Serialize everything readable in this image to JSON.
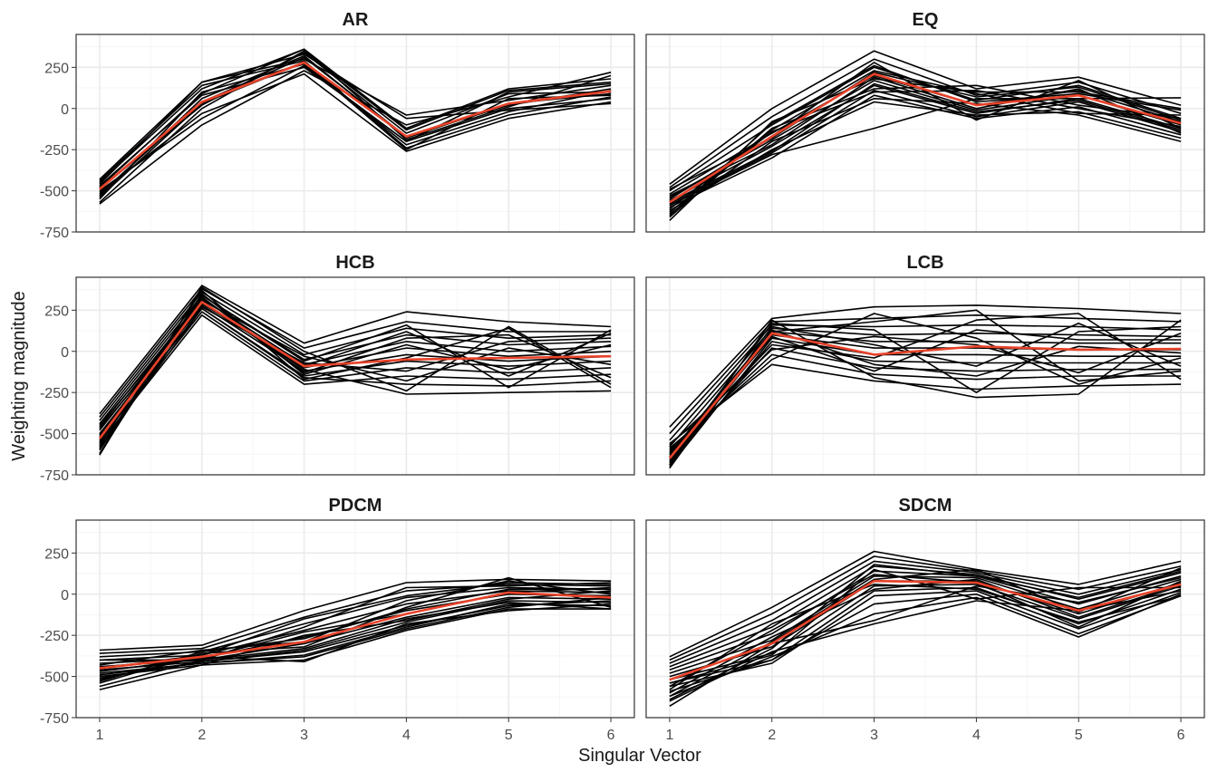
{
  "chart_data": {
    "type": "line",
    "ylabel": "Weighting magnitude",
    "xlabel": "Singular Vector",
    "x": [
      1,
      2,
      3,
      4,
      5,
      6
    ],
    "xlim": [
      0.77,
      6.23
    ],
    "ylim": [
      -750,
      450
    ],
    "yticks": [
      -750,
      -500,
      -250,
      0,
      250
    ],
    "grid": true,
    "colors": {
      "sample": "#000000",
      "mean": "#e8432a",
      "gridMajor": "#ebebeb",
      "gridMinor": "#f5f5f5",
      "border": "#333333"
    },
    "panels": [
      {
        "title": "AR",
        "mean": [
          -490,
          40,
          280,
          -170,
          30,
          105
        ],
        "samples": [
          [
            -430,
            160,
            300,
            -40,
            50,
            140
          ],
          [
            -450,
            120,
            360,
            -120,
            120,
            180
          ],
          [
            -470,
            80,
            250,
            -200,
            0,
            60
          ],
          [
            -490,
            20,
            340,
            -150,
            90,
            100
          ],
          [
            -510,
            -30,
            210,
            -260,
            -60,
            40
          ],
          [
            -530,
            60,
            320,
            -180,
            30,
            90
          ],
          [
            -550,
            100,
            270,
            -220,
            -20,
            110
          ],
          [
            -570,
            0,
            350,
            -130,
            110,
            160
          ],
          [
            -580,
            -100,
            230,
            -100,
            70,
            220
          ],
          [
            -440,
            140,
            290,
            -240,
            -40,
            70
          ],
          [
            -520,
            40,
            310,
            -170,
            20,
            120
          ],
          [
            -500,
            -60,
            260,
            -200,
            100,
            150
          ],
          [
            -460,
            160,
            330,
            -60,
            -10,
            30
          ],
          [
            -540,
            30,
            280,
            -250,
            60,
            80
          ],
          [
            -480,
            90,
            360,
            -190,
            10,
            200
          ]
        ]
      },
      {
        "title": "EQ",
        "mean": [
          -570,
          -170,
          210,
          20,
          80,
          -90
        ],
        "samples": [
          [
            -460,
            0,
            350,
            120,
            190,
            20
          ],
          [
            -480,
            -50,
            300,
            80,
            160,
            -30
          ],
          [
            -500,
            -100,
            250,
            50,
            140,
            -60
          ],
          [
            -520,
            -150,
            200,
            20,
            110,
            -80
          ],
          [
            -540,
            -190,
            170,
            -10,
            80,
            -100
          ],
          [
            -560,
            -230,
            140,
            -30,
            60,
            -120
          ],
          [
            -580,
            -270,
            110,
            -50,
            40,
            -140
          ],
          [
            -600,
            -300,
            80,
            -60,
            10,
            -160
          ],
          [
            -620,
            -250,
            40,
            -40,
            -20,
            -180
          ],
          [
            -640,
            -200,
            60,
            30,
            -40,
            -200
          ],
          [
            -660,
            -120,
            120,
            140,
            20,
            -60
          ],
          [
            -680,
            -80,
            180,
            100,
            100,
            0
          ],
          [
            -590,
            -280,
            -120,
            60,
            60,
            65
          ],
          [
            -550,
            -170,
            280,
            -70,
            170,
            -120
          ],
          [
            -610,
            -130,
            230,
            90,
            -30,
            -40
          ],
          [
            -530,
            -220,
            190,
            0,
            120,
            -150
          ],
          [
            -650,
            -90,
            260,
            40,
            90,
            -10
          ],
          [
            -570,
            -260,
            150,
            -20,
            50,
            -130
          ],
          [
            -490,
            -180,
            220,
            70,
            130,
            -70
          ],
          [
            -630,
            -140,
            100,
            110,
            0,
            -110
          ]
        ]
      },
      {
        "title": "HCB",
        "mean": [
          -530,
          300,
          -90,
          -50,
          -40,
          -30
        ],
        "samples": [
          [
            -380,
            400,
            50,
            240,
            180,
            150
          ],
          [
            -400,
            380,
            20,
            180,
            120,
            120
          ],
          [
            -420,
            360,
            -20,
            140,
            80,
            100
          ],
          [
            -440,
            340,
            -50,
            100,
            40,
            60
          ],
          [
            -460,
            320,
            -80,
            60,
            0,
            30
          ],
          [
            -480,
            300,
            -100,
            20,
            -30,
            0
          ],
          [
            -500,
            280,
            -120,
            -20,
            -60,
            -30
          ],
          [
            -520,
            260,
            -150,
            -60,
            -90,
            -60
          ],
          [
            -540,
            240,
            -180,
            -100,
            -130,
            -100
          ],
          [
            -560,
            220,
            -200,
            -150,
            -170,
            -140
          ],
          [
            -580,
            260,
            -160,
            -200,
            -210,
            -180
          ],
          [
            -600,
            300,
            -110,
            -260,
            -250,
            -240
          ],
          [
            -620,
            340,
            -60,
            160,
            -220,
            130
          ],
          [
            -630,
            390,
            0,
            -240,
            150,
            -200
          ],
          [
            -550,
            330,
            -130,
            80,
            100,
            -160
          ],
          [
            -470,
            270,
            -70,
            -120,
            60,
            80
          ],
          [
            -590,
            350,
            -140,
            40,
            -110,
            40
          ],
          [
            -510,
            310,
            -30,
            -180,
            20,
            -80
          ],
          [
            -450,
            290,
            -90,
            120,
            -150,
            110
          ],
          [
            -570,
            370,
            -170,
            -40,
            140,
            -220
          ]
        ]
      },
      {
        "title": "LCB",
        "mean": [
          -650,
          110,
          -20,
          30,
          10,
          15
        ],
        "samples": [
          [
            -460,
            200,
            270,
            280,
            260,
            230
          ],
          [
            -500,
            180,
            200,
            220,
            200,
            180
          ],
          [
            -540,
            160,
            150,
            160,
            150,
            130
          ],
          [
            -580,
            140,
            100,
            110,
            100,
            90
          ],
          [
            -620,
            120,
            60,
            60,
            50,
            50
          ],
          [
            -660,
            100,
            20,
            20,
            10,
            10
          ],
          [
            -700,
            80,
            -20,
            -20,
            -30,
            -30
          ],
          [
            -680,
            60,
            -60,
            -70,
            -70,
            -70
          ],
          [
            -640,
            20,
            -100,
            -120,
            -110,
            -110
          ],
          [
            -600,
            -20,
            -140,
            -170,
            -150,
            -150
          ],
          [
            -560,
            -80,
            -180,
            -230,
            -210,
            -200
          ],
          [
            -690,
            190,
            -160,
            -280,
            -260,
            190
          ],
          [
            -670,
            120,
            180,
            250,
            -180,
            -120
          ],
          [
            -610,
            40,
            -40,
            190,
            230,
            -170
          ],
          [
            -650,
            170,
            130,
            -250,
            120,
            150
          ],
          [
            -590,
            -50,
            230,
            80,
            -200,
            -40
          ],
          [
            -630,
            90,
            -120,
            130,
            70,
            70
          ],
          [
            -710,
            150,
            40,
            -90,
            170,
            -90
          ],
          [
            -570,
            10,
            90,
            40,
            -130,
            110
          ],
          [
            -690,
            130,
            -80,
            -150,
            30,
            -10
          ]
        ]
      },
      {
        "title": "PDCM",
        "mean": [
          -450,
          -380,
          -290,
          -120,
          10,
          -20
        ],
        "samples": [
          [
            -340,
            -310,
            -100,
            70,
            90,
            80
          ],
          [
            -360,
            -330,
            -140,
            20,
            60,
            50
          ],
          [
            -380,
            -350,
            -180,
            -20,
            40,
            30
          ],
          [
            -400,
            -370,
            -220,
            -60,
            20,
            10
          ],
          [
            -420,
            -390,
            -260,
            -100,
            0,
            -10
          ],
          [
            -440,
            -400,
            -300,
            -140,
            -20,
            -30
          ],
          [
            -460,
            -410,
            -340,
            -170,
            -40,
            -50
          ],
          [
            -480,
            -420,
            -370,
            -200,
            -60,
            -70
          ],
          [
            -500,
            -430,
            -400,
            -220,
            -90,
            -90
          ],
          [
            -520,
            -380,
            -410,
            -180,
            -100,
            -60
          ],
          [
            -540,
            -360,
            -320,
            -80,
            100,
            -80
          ],
          [
            -560,
            -400,
            -200,
            40,
            50,
            70
          ],
          [
            -580,
            -430,
            -250,
            -160,
            -30,
            20
          ],
          [
            -430,
            -340,
            -290,
            -40,
            80,
            0
          ],
          [
            -470,
            -390,
            -230,
            -120,
            10,
            40
          ],
          [
            -510,
            -410,
            -350,
            -190,
            -70,
            -40
          ],
          [
            -450,
            -370,
            -150,
            -10,
            70,
            60
          ],
          [
            -490,
            -420,
            -380,
            -210,
            -80,
            -20
          ],
          [
            -530,
            -350,
            -270,
            -90,
            30,
            30
          ],
          [
            -400,
            -400,
            -330,
            -150,
            -50,
            -90
          ]
        ]
      },
      {
        "title": "SDCM",
        "mean": [
          -520,
          -300,
          80,
          70,
          -100,
          60
        ],
        "samples": [
          [
            -380,
            -80,
            260,
            150,
            60,
            200
          ],
          [
            -400,
            -120,
            230,
            140,
            30,
            170
          ],
          [
            -420,
            -160,
            200,
            130,
            0,
            150
          ],
          [
            -440,
            -200,
            170,
            120,
            -30,
            130
          ],
          [
            -460,
            -240,
            140,
            110,
            -60,
            110
          ],
          [
            -480,
            -280,
            110,
            100,
            -90,
            90
          ],
          [
            -500,
            -320,
            80,
            80,
            -120,
            70
          ],
          [
            -520,
            -360,
            50,
            60,
            -150,
            50
          ],
          [
            -540,
            -400,
            20,
            40,
            -180,
            30
          ],
          [
            -560,
            -420,
            -10,
            20,
            -210,
            10
          ],
          [
            -590,
            -400,
            -60,
            0,
            -240,
            -10
          ],
          [
            -620,
            -380,
            -120,
            -20,
            -260,
            0
          ],
          [
            -650,
            -350,
            -180,
            -40,
            -100,
            20
          ],
          [
            -680,
            -300,
            -160,
            50,
            -50,
            100
          ],
          [
            -600,
            -260,
            30,
            90,
            -140,
            60
          ],
          [
            -560,
            -220,
            120,
            70,
            -200,
            80
          ],
          [
            -640,
            -330,
            180,
            110,
            -20,
            140
          ],
          [
            -580,
            -180,
            60,
            30,
            -170,
            -10
          ],
          [
            -620,
            -290,
            90,
            150,
            -110,
            160
          ],
          [
            -540,
            -370,
            150,
            -30,
            40,
            40
          ]
        ]
      }
    ]
  }
}
